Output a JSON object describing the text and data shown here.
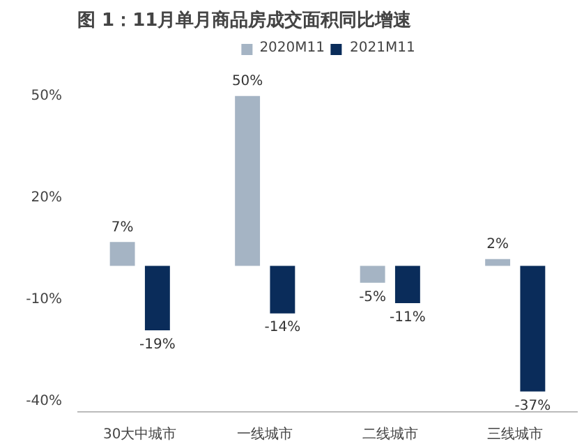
{
  "chart_data": {
    "type": "bar",
    "title": "图 1：11月单月商品房成交面积同比增速",
    "categories": [
      "30大中城市",
      "一线城市",
      "二线城市",
      "三线城市"
    ],
    "series": [
      {
        "name": "2020M11",
        "color": "#a5b4c4",
        "values": [
          7,
          50,
          -5,
          2
        ],
        "value_labels": [
          "7%",
          "50%",
          "-5%",
          "2%"
        ]
      },
      {
        "name": "2021M11",
        "color": "#0a2c5a",
        "values": [
          -19,
          -14,
          -11,
          -37
        ],
        "value_labels": [
          "-19%",
          "-14%",
          "-11%",
          "-37%"
        ]
      }
    ],
    "ylim": [
      -43,
      67
    ],
    "yticks": [
      {
        "value": 50,
        "label": "50%"
      },
      {
        "value": 20,
        "label": "20%"
      },
      {
        "value": -10,
        "label": "-10%"
      },
      {
        "value": -40,
        "label": "-40%"
      }
    ],
    "grid": false,
    "legend": "top"
  }
}
